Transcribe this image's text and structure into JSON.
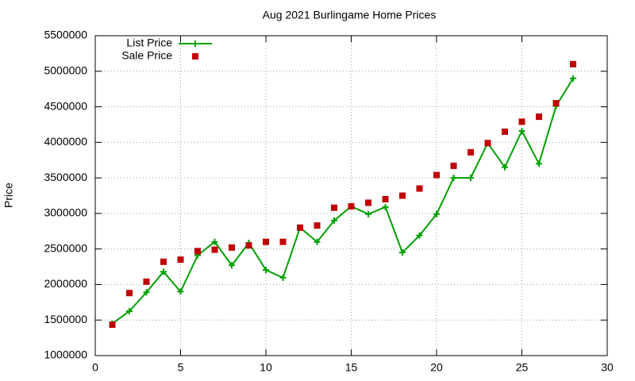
{
  "chart_data": {
    "type": "line",
    "title": "Aug 2021 Burlingame Home Prices",
    "y_label": "Price",
    "x": [
      1,
      2,
      3,
      4,
      5,
      6,
      7,
      8,
      9,
      10,
      11,
      12,
      13,
      14,
      15,
      16,
      17,
      18,
      19,
      20,
      21,
      22,
      23,
      24,
      25,
      26,
      27,
      28
    ],
    "series": [
      {
        "name": "List Price",
        "color": "#00a000",
        "line": true,
        "marker": "plus",
        "values": [
          1450000,
          1625000,
          1890000,
          2180000,
          1900000,
          2410000,
          2600000,
          2270000,
          2585000,
          2205000,
          2095000,
          2800000,
          2600000,
          2900000,
          3100000,
          2990000,
          3090000,
          2450000,
          2690000,
          2990000,
          3500000,
          3500000,
          3990000,
          3650000,
          4160000,
          3700000,
          4510000,
          4900000
        ]
      },
      {
        "name": "Sale Price",
        "color": "#c00000",
        "line": false,
        "marker": "square",
        "values": [
          1435000,
          1880000,
          2040000,
          2320000,
          2350000,
          2470000,
          2490000,
          2520000,
          2550000,
          2600000,
          2600000,
          2800000,
          2830000,
          3080000,
          3100000,
          3150000,
          3200000,
          3250000,
          3350000,
          3540000,
          3670000,
          3860000,
          3990000,
          4150000,
          4290000,
          4360000,
          4550000,
          5100000
        ]
      }
    ],
    "xlim": [
      0,
      30
    ],
    "xticks": [
      0,
      5,
      10,
      15,
      20,
      25,
      30
    ],
    "ylim": [
      1000000,
      5500000
    ],
    "yticks": [
      1000000,
      1500000,
      2000000,
      2500000,
      3000000,
      3500000,
      4000000,
      4500000,
      5000000,
      5500000
    ],
    "grid": true,
    "legend": "top-left"
  }
}
